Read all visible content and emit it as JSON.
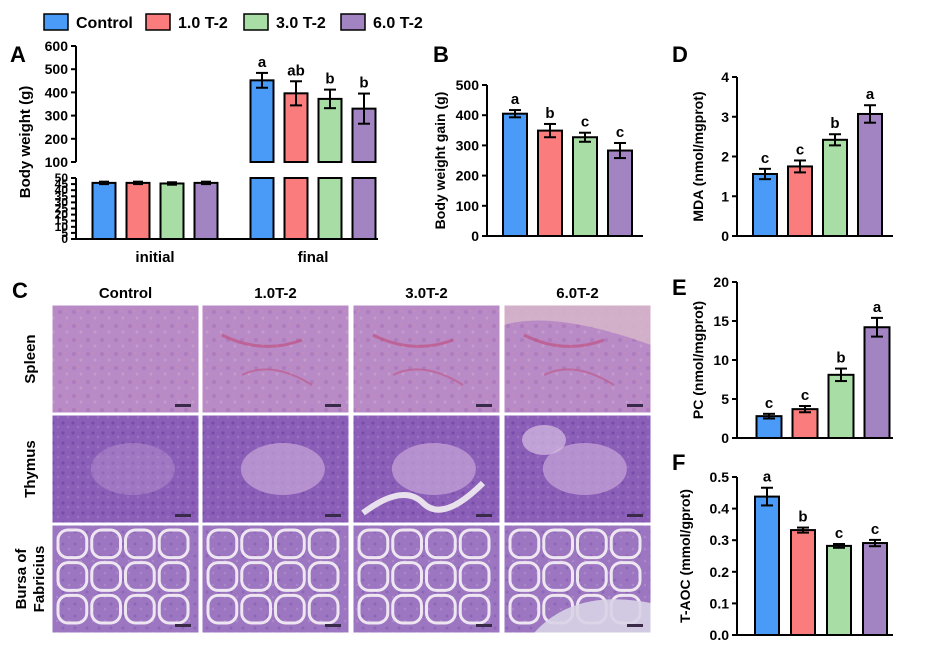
{
  "legend": [
    {
      "label": "Control",
      "color": "#4A9BF7"
    },
    {
      "label": "1.0 T-2",
      "color": "#FA7C7C"
    },
    {
      "label": "3.0 T-2",
      "color": "#A9DDA6"
    },
    {
      "label": "6.0 T-2",
      "color": "#A384C2"
    }
  ],
  "panel_letters": {
    "A": "A",
    "B": "B",
    "C": "C",
    "D": "D",
    "E": "E",
    "F": "F"
  },
  "histology": {
    "columns": [
      "Control",
      "1.0T-2",
      "3.0T-2",
      "6.0T-2"
    ],
    "rows": [
      "Spleen",
      "Thymus",
      "Bursa of Fabricius"
    ],
    "row_labels_display": [
      [
        "Spleen"
      ],
      [
        "Thymus"
      ],
      [
        "Bursa of",
        "Fabricius"
      ]
    ]
  },
  "chart_data": [
    {
      "id": "A",
      "type": "bar",
      "ylabel": "Body weight (g)",
      "categories": [
        "initial",
        "final"
      ],
      "axis_break": {
        "lower_range": [
          0,
          50
        ],
        "upper_range": [
          100,
          600
        ]
      },
      "lower_ticks": [
        0,
        5,
        10,
        15,
        20,
        25,
        30,
        35,
        40,
        45,
        50
      ],
      "upper_ticks": [
        100,
        200,
        300,
        400,
        500,
        600
      ],
      "series": [
        {
          "name": "Control",
          "values": [
            46,
            452
          ],
          "errors": [
            1,
            32
          ],
          "letters": [
            "",
            "a"
          ]
        },
        {
          "name": "1.0 T-2",
          "values": [
            46,
            396
          ],
          "errors": [
            1,
            52
          ],
          "letters": [
            "",
            "ab"
          ]
        },
        {
          "name": "3.0 T-2",
          "values": [
            45.5,
            372
          ],
          "errors": [
            1,
            40
          ],
          "letters": [
            "",
            "b"
          ]
        },
        {
          "name": "6.0 T-2",
          "values": [
            46,
            330
          ],
          "errors": [
            1,
            65
          ],
          "letters": [
            "",
            "b"
          ]
        }
      ]
    },
    {
      "id": "B",
      "type": "bar",
      "ylabel": "Body weight gain (g)",
      "ylim": [
        0,
        500
      ],
      "yticks": [
        0,
        100,
        200,
        300,
        400,
        500
      ],
      "categories": [
        "Control",
        "1.0 T-2",
        "3.0 T-2",
        "6.0 T-2"
      ],
      "values": [
        405,
        349,
        327,
        283
      ],
      "errors": [
        12,
        22,
        15,
        25
      ],
      "letters": [
        "a",
        "b",
        "c",
        "c"
      ]
    },
    {
      "id": "D",
      "type": "bar",
      "ylabel": "MDA (nmol/mgprot)",
      "ylim": [
        0,
        4
      ],
      "yticks": [
        0,
        1,
        2,
        3,
        4
      ],
      "categories": [
        "Control",
        "1.0 T-2",
        "3.0 T-2",
        "6.0 T-2"
      ],
      "values": [
        1.56,
        1.75,
        2.42,
        3.07
      ],
      "errors": [
        0.13,
        0.15,
        0.14,
        0.22
      ],
      "letters": [
        "c",
        "c",
        "b",
        "a"
      ]
    },
    {
      "id": "E",
      "type": "bar",
      "ylabel": "PC (nmol/mgprot)",
      "ylim": [
        0,
        20
      ],
      "yticks": [
        0,
        5,
        10,
        15,
        20
      ],
      "categories": [
        "Control",
        "1.0 T-2",
        "3.0 T-2",
        "6.0 T-2"
      ],
      "values": [
        2.8,
        3.7,
        8.1,
        14.2
      ],
      "errors": [
        0.3,
        0.4,
        0.8,
        1.2
      ],
      "letters": [
        "c",
        "c",
        "b",
        "a"
      ]
    },
    {
      "id": "F",
      "type": "bar",
      "ylabel": "T-AOC (mmol/gprot)",
      "ylim": [
        0,
        0.5
      ],
      "yticks": [
        "0.0",
        "0.1",
        "0.2",
        "0.3",
        "0.4",
        "0.5"
      ],
      "categories": [
        "Control",
        "1.0 T-2",
        "3.0 T-2",
        "6.0 T-2"
      ],
      "values": [
        0.438,
        0.332,
        0.282,
        0.291
      ],
      "errors": [
        0.028,
        0.008,
        0.006,
        0.01
      ],
      "letters": [
        "a",
        "b",
        "c",
        "c"
      ]
    }
  ]
}
